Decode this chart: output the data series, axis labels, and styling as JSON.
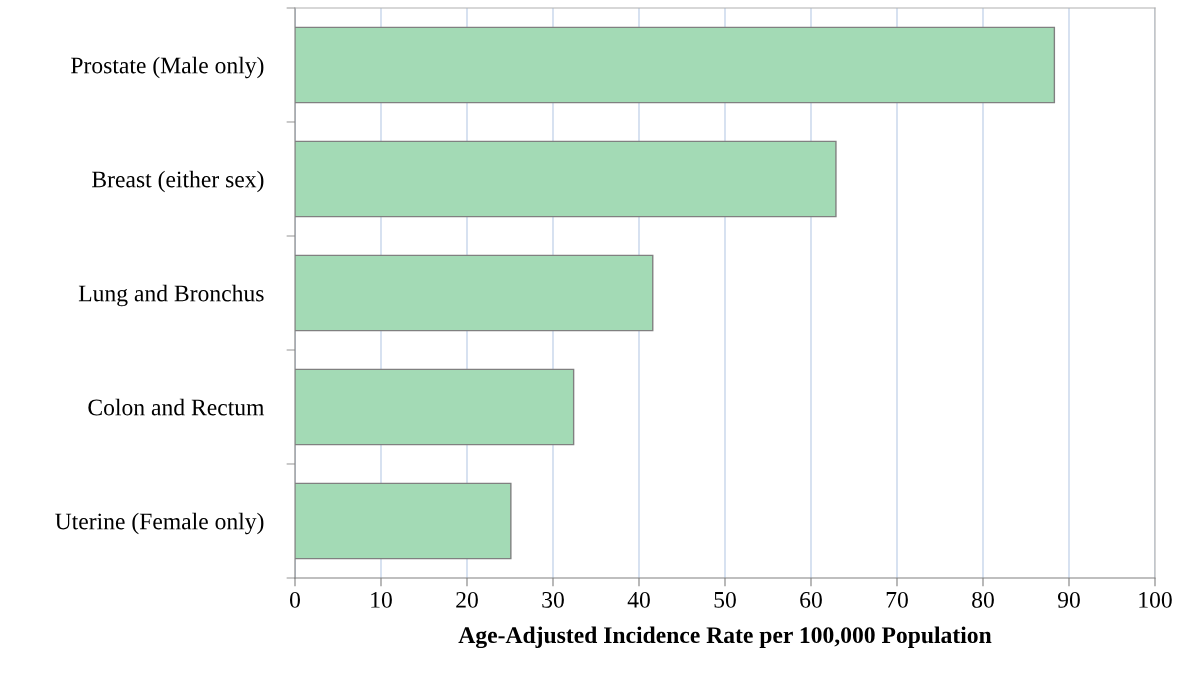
{
  "chart_data": {
    "type": "bar",
    "orientation": "horizontal",
    "xlabel": "Age-Adjusted Incidence Rate per 100,000 Population",
    "categories": [
      "Prostate (Male only)",
      "Breast (either sex)",
      "Lung and Bronchus",
      "Colon and Rectum",
      "Uterine (Female only)"
    ],
    "values": [
      88.3,
      62.9,
      41.6,
      32.4,
      25.1
    ],
    "color": "#a3dab5",
    "xlim": [
      0,
      100
    ],
    "xticks": [
      0,
      10,
      20,
      30,
      40,
      50,
      60,
      70,
      80,
      90,
      100
    ],
    "grid": "x"
  }
}
